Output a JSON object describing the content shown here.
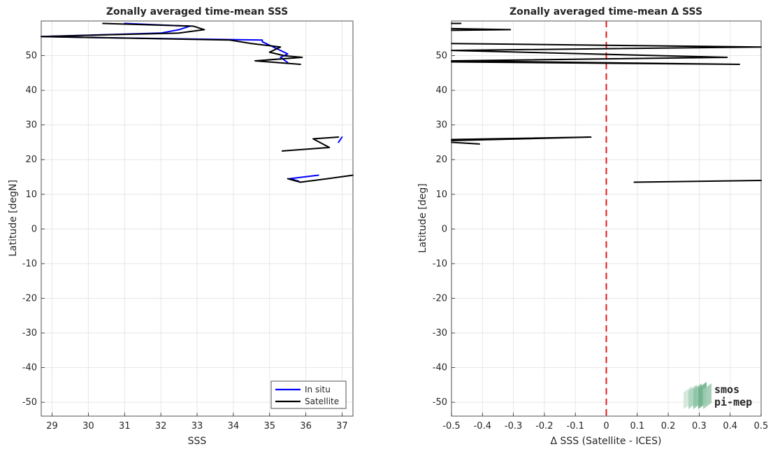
{
  "colors": {
    "in_situ": "#0000ff",
    "satellite": "#000000",
    "zero_line": "#e31a1c",
    "logo": "#7fb89a"
  },
  "logo": {
    "line1": "smos",
    "line2": "pi-mep"
  },
  "chart_data": [
    {
      "type": "line",
      "title": "Zonally averaged time-mean SSS",
      "xlabel": "SSS",
      "ylabel": "Latitude [degN]",
      "xlim": [
        28.7,
        37.3
      ],
      "ylim": [
        -54,
        60
      ],
      "xticks": [
        29,
        30,
        31,
        32,
        33,
        34,
        35,
        36,
        37
      ],
      "yticks": [
        -50,
        -40,
        -30,
        -20,
        -10,
        0,
        10,
        20,
        30,
        40,
        50
      ],
      "grid": true,
      "legend_position": "bottom-right",
      "series": [
        {
          "name": "In situ",
          "color_key": "in_situ",
          "segments": [
            [
              [
                35.5,
                48.0
              ],
              [
                35.3,
                49.5
              ],
              [
                35.5,
                50.5
              ],
              [
                35.3,
                51.5
              ],
              [
                34.8,
                54.0
              ],
              [
                34.8,
                54.5
              ],
              [
                30.2,
                55.2
              ],
              [
                28.7,
                55.5
              ],
              [
                32.0,
                56.5
              ],
              [
                32.5,
                57.5
              ],
              [
                32.8,
                58.5
              ],
              [
                31.0,
                59.3
              ]
            ],
            [
              [
                36.9,
                25.0
              ],
              [
                37.0,
                26.5
              ]
            ],
            [
              [
                36.35,
                15.5
              ],
              [
                35.55,
                14.5
              ],
              [
                35.8,
                13.8
              ]
            ]
          ]
        },
        {
          "name": "Satellite",
          "color_key": "satellite",
          "segments": [
            [
              [
                35.85,
                47.5
              ],
              [
                34.6,
                48.5
              ],
              [
                35.9,
                49.5
              ],
              [
                35.4,
                50.0
              ],
              [
                35.0,
                51.0
              ],
              [
                35.3,
                52.5
              ],
              [
                34.9,
                53.0
              ],
              [
                34.5,
                53.5
              ],
              [
                33.9,
                54.5
              ],
              [
                28.7,
                55.5
              ],
              [
                30.5,
                56.0
              ],
              [
                32.5,
                56.5
              ],
              [
                33.2,
                57.5
              ],
              [
                32.9,
                58.5
              ],
              [
                30.4,
                59.3
              ]
            ],
            [
              [
                35.35,
                22.5
              ],
              [
                36.65,
                23.5
              ],
              [
                36.2,
                26.0
              ],
              [
                36.9,
                26.5
              ]
            ],
            [
              [
                37.3,
                15.5
              ],
              [
                36.6,
                14.5
              ],
              [
                35.85,
                13.5
              ],
              [
                35.5,
                14.5
              ]
            ]
          ]
        }
      ]
    },
    {
      "type": "line",
      "title": "Zonally averaged time-mean Δ SSS",
      "xlabel": "Δ SSS (Satellite - ICES)",
      "ylabel": "Latitude [deg]",
      "xlim": [
        -0.5,
        0.5
      ],
      "ylim": [
        -54,
        60
      ],
      "xticks": [
        -0.5,
        -0.4,
        -0.3,
        -0.2,
        -0.1,
        0,
        0.1,
        0.2,
        0.3,
        0.4,
        0.5
      ],
      "yticks": [
        -50,
        -40,
        -30,
        -20,
        -10,
        0,
        10,
        20,
        30,
        40,
        50
      ],
      "grid": true,
      "zero_line": {
        "x": 0,
        "style": "dashed",
        "color_key": "zero_line"
      },
      "series": [
        {
          "color_key": "satellite",
          "segments": [
            [
              [
                -0.5,
                59.3
              ],
              [
                -0.47,
                59.3
              ]
            ],
            [
              [
                -0.5,
                57.3
              ],
              [
                -0.31,
                57.5
              ],
              [
                -0.5,
                57.8
              ]
            ],
            [
              [
                -0.5,
                53.5
              ],
              [
                0.5,
                52.5
              ],
              [
                -0.5,
                51.5
              ],
              [
                0.39,
                49.5
              ],
              [
                -0.5,
                48.5
              ],
              [
                0.43,
                47.5
              ],
              [
                -0.5,
                48.2
              ]
            ],
            [
              [
                -0.5,
                25.5
              ],
              [
                -0.05,
                26.5
              ],
              [
                -0.5,
                25.8
              ]
            ],
            [
              [
                -0.5,
                25.0
              ],
              [
                -0.41,
                24.5
              ]
            ],
            [
              [
                0.09,
                13.5
              ],
              [
                0.5,
                14.0
              ]
            ]
          ]
        }
      ]
    }
  ]
}
